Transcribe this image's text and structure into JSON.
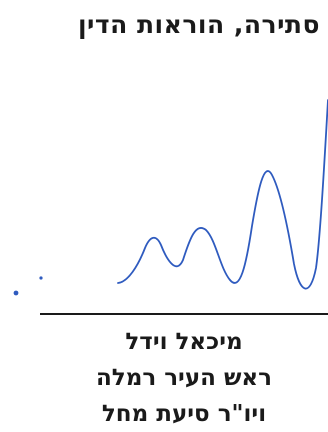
{
  "heading": "סתירה, הוראות הדין",
  "signatory": {
    "name": "מיכאל וידל",
    "title_1": "ראש העיר רמלה",
    "title_2": "ויו\"ר סיעת מחל"
  },
  "colors": {
    "text": "#1a1a1a",
    "signature_ink": "#2f5bbf"
  }
}
